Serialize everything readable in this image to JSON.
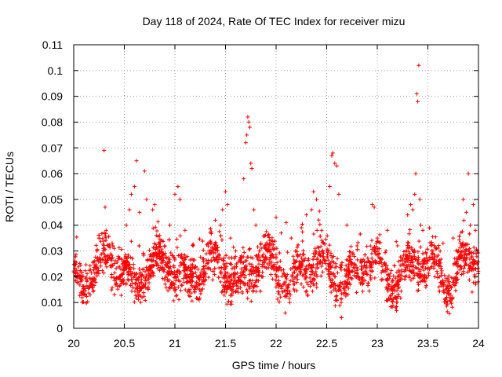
{
  "chart_data": {
    "type": "scatter",
    "title": "Day 118 of 2024, Rate Of TEC Index for receiver mizu",
    "xlabel": "GPS time / hours",
    "ylabel": "ROTI / TECUs",
    "xlim": [
      20,
      24
    ],
    "ylim": [
      0,
      0.11
    ],
    "grid": true,
    "marker": "plus",
    "color": "#ff0000",
    "xticks": [
      "20",
      "20.5",
      "21",
      "21.5",
      "22",
      "22.5",
      "23",
      "23.5",
      "24"
    ],
    "yticks": [
      "0",
      "0.01",
      "0.02",
      "0.03",
      "0.04",
      "0.05",
      "0.06",
      "0.07",
      "0.08",
      "0.09",
      "0.1",
      "0.11"
    ],
    "series": [
      {
        "name": "ROTI",
        "points": [
          [
            20.3,
            0.069
          ],
          [
            20.31,
            0.047
          ],
          [
            20.32,
            0.038
          ],
          [
            20.35,
            0.032
          ],
          [
            20.38,
            0.033
          ],
          [
            20.4,
            0.031
          ],
          [
            20.52,
            0.04
          ],
          [
            20.55,
            0.046
          ],
          [
            20.57,
            0.052
          ],
          [
            20.6,
            0.055
          ],
          [
            20.62,
            0.065
          ],
          [
            20.65,
            0.045
          ],
          [
            20.7,
            0.061
          ],
          [
            20.72,
            0.05
          ],
          [
            20.78,
            0.046
          ],
          [
            20.8,
            0.048
          ],
          [
            20.85,
            0.036
          ],
          [
            20.9,
            0.032
          ],
          [
            20.95,
            0.04
          ],
          [
            21.0,
            0.052
          ],
          [
            21.03,
            0.055
          ],
          [
            21.05,
            0.05
          ],
          [
            21.1,
            0.038
          ],
          [
            21.18,
            0.032
          ],
          [
            21.45,
            0.04
          ],
          [
            21.47,
            0.046
          ],
          [
            21.5,
            0.053
          ],
          [
            21.52,
            0.048
          ],
          [
            21.55,
            0.035
          ],
          [
            21.6,
            0.03
          ],
          [
            21.68,
            0.058
          ],
          [
            21.7,
            0.072
          ],
          [
            21.71,
            0.075
          ],
          [
            21.72,
            0.082
          ],
          [
            21.73,
            0.08
          ],
          [
            21.74,
            0.078
          ],
          [
            21.75,
            0.064
          ],
          [
            21.76,
            0.062
          ],
          [
            21.78,
            0.046
          ],
          [
            21.8,
            0.04
          ],
          [
            21.85,
            0.033
          ],
          [
            21.95,
            0.034
          ],
          [
            22.0,
            0.043
          ],
          [
            22.05,
            0.037
          ],
          [
            22.1,
            0.041
          ],
          [
            22.15,
            0.035
          ],
          [
            22.25,
            0.039
          ],
          [
            22.3,
            0.044
          ],
          [
            22.35,
            0.046
          ],
          [
            22.37,
            0.053
          ],
          [
            22.4,
            0.05
          ],
          [
            22.42,
            0.042
          ],
          [
            22.45,
            0.038
          ],
          [
            22.5,
            0.03
          ],
          [
            22.53,
            0.055
          ],
          [
            22.55,
            0.067
          ],
          [
            22.56,
            0.068
          ],
          [
            22.58,
            0.064
          ],
          [
            22.6,
            0.063
          ],
          [
            22.62,
            0.052
          ],
          [
            22.7,
            0.04
          ],
          [
            22.8,
            0.032
          ],
          [
            22.95,
            0.048
          ],
          [
            22.97,
            0.047
          ],
          [
            23.0,
            0.035
          ],
          [
            23.1,
            0.038
          ],
          [
            23.2,
            0.032
          ],
          [
            23.3,
            0.044
          ],
          [
            23.33,
            0.048
          ],
          [
            23.35,
            0.046
          ],
          [
            23.37,
            0.052
          ],
          [
            23.38,
            0.06
          ],
          [
            23.39,
            0.091
          ],
          [
            23.4,
            0.088
          ],
          [
            23.41,
            0.102
          ],
          [
            23.42,
            0.05
          ],
          [
            23.43,
            0.04
          ],
          [
            23.45,
            0.038
          ],
          [
            23.55,
            0.03
          ],
          [
            23.65,
            0.033
          ],
          [
            23.75,
            0.035
          ],
          [
            23.85,
            0.05
          ],
          [
            23.88,
            0.045
          ],
          [
            23.9,
            0.06
          ],
          [
            23.92,
            0.04
          ],
          [
            23.95,
            0.048
          ],
          [
            23.97,
            0.038
          ],
          [
            23.99,
            0.03
          ]
        ]
      }
    ]
  }
}
